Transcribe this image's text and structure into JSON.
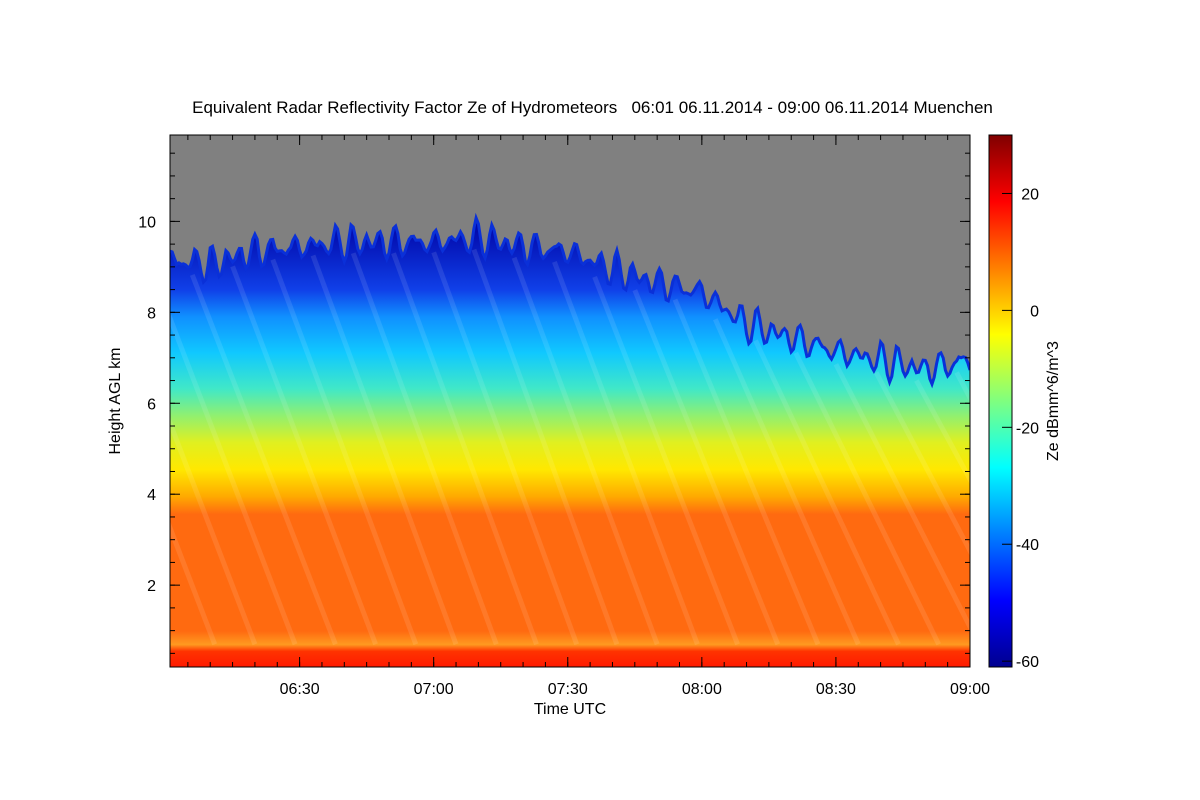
{
  "chart_data": {
    "type": "heatmap",
    "title": "Equivalent Radar Reflectivity Factor Ze of Hydrometeors   06:01 06.11.2014 - 09:00 06.11.2014 Muenchen",
    "xlabel": "Time UTC",
    "ylabel": "Height AGL km",
    "colorbar_label": "Ze dBmm^6/m^3",
    "x_range": [
      "06:01",
      "09:00"
    ],
    "x_ticks": [
      "06:30",
      "07:00",
      "07:30",
      "08:00",
      "08:30",
      "09:00"
    ],
    "ylim": [
      0.2,
      11.9
    ],
    "y_ticks": [
      "2",
      "4",
      "6",
      "8",
      "10"
    ],
    "colorbar_range": [
      -61,
      30
    ],
    "colorbar_ticks": [
      "20",
      "0",
      "-20",
      "-40",
      "-60"
    ],
    "no_data_color": "#808080",
    "colormap": "jet",
    "echo_top_km": {
      "times": [
        "06:01",
        "06:10",
        "06:20",
        "06:30",
        "06:40",
        "06:50",
        "07:00",
        "07:10",
        "07:20",
        "07:30",
        "07:40",
        "07:50",
        "08:00",
        "08:10",
        "08:20",
        "08:30",
        "08:40",
        "08:50",
        "09:00"
      ],
      "values": [
        9.3,
        9.2,
        9.5,
        9.6,
        9.7,
        9.7,
        9.7,
        9.8,
        9.6,
        9.5,
        9.1,
        8.8,
        8.6,
        7.9,
        7.6,
        7.3,
        7.1,
        6.9,
        7.1
      ]
    },
    "layers": [
      {
        "name": "",
        "bottom_km": 0.2,
        "top_km": 0.6,
        "approx_ze_dbz": 24
      },
      {
        "name": "",
        "bottom_km": 0.6,
        "top_km": 4.4,
        "approx_ze_dbz": 12
      },
      {
        "name": "",
        "bottom_km": 4.4,
        "top_km": 5.5,
        "approx_ze_dbz": 2
      },
      {
        "name": "",
        "bottom_km": 5.5,
        "top_km": 7.0,
        "approx_ze_dbz": -12
      },
      {
        "name": "",
        "bottom_km": 7.0,
        "top_km": 9.0,
        "approx_ze_dbz": -30
      }
    ]
  }
}
